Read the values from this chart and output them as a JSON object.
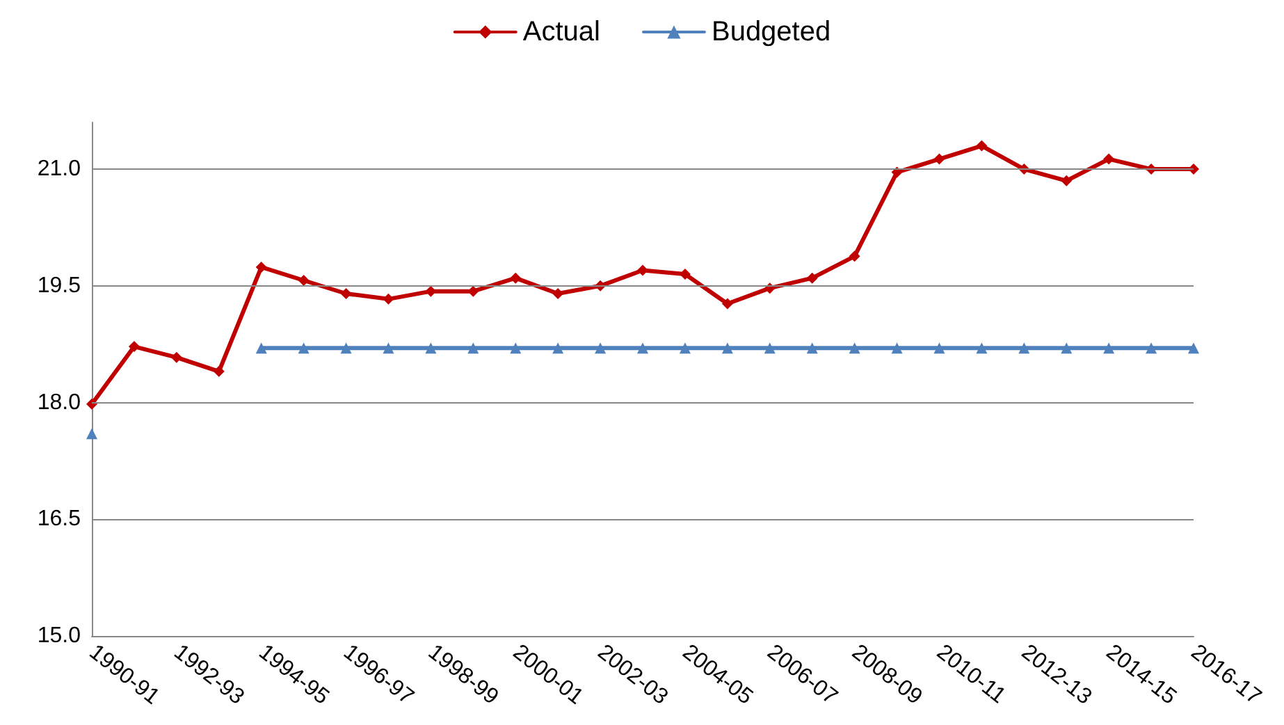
{
  "chart_data": {
    "type": "line",
    "categories": [
      "1990-91",
      null,
      "1992-93",
      null,
      "1994-95",
      null,
      "1996-97",
      null,
      "1998-99",
      null,
      "2000-01",
      null,
      "2002-03",
      null,
      "2004-05",
      null,
      "2006-07",
      null,
      "2008-09",
      null,
      "2010-11",
      null,
      "2012-13",
      null,
      "2014-15",
      null,
      "2016-17"
    ],
    "series": [
      {
        "name": "Actual",
        "color": "#c00000",
        "marker": "diamond",
        "values": [
          17.98,
          18.72,
          18.58,
          18.4,
          19.74,
          19.57,
          19.4,
          19.33,
          19.43,
          19.43,
          19.6,
          19.4,
          19.5,
          19.7,
          19.65,
          19.27,
          19.47,
          19.6,
          19.88,
          20.96,
          21.13,
          21.3,
          21.0,
          20.85,
          21.13,
          21.0,
          21.0
        ]
      },
      {
        "name": "Budgeted",
        "color": "#4f81bd",
        "marker": "triangle",
        "values": [
          17.6,
          null,
          null,
          null,
          18.7,
          18.7,
          18.7,
          18.7,
          18.7,
          18.7,
          18.7,
          18.7,
          18.7,
          18.7,
          18.7,
          18.7,
          18.7,
          18.7,
          18.7,
          18.7,
          18.7,
          18.7,
          18.7,
          18.7,
          18.7,
          18.7,
          18.7
        ]
      }
    ],
    "ylim": [
      15,
      21.6
    ],
    "yticks": [
      {
        "value": 15,
        "label": "15.0"
      },
      {
        "value": 16.5,
        "label": "16.5"
      },
      {
        "value": 18,
        "label": "18.0"
      },
      {
        "value": 19.5,
        "label": "19.5"
      },
      {
        "value": 21,
        "label": "21.0"
      }
    ],
    "grid": "y",
    "legend": "top",
    "line_style": "solid"
  }
}
